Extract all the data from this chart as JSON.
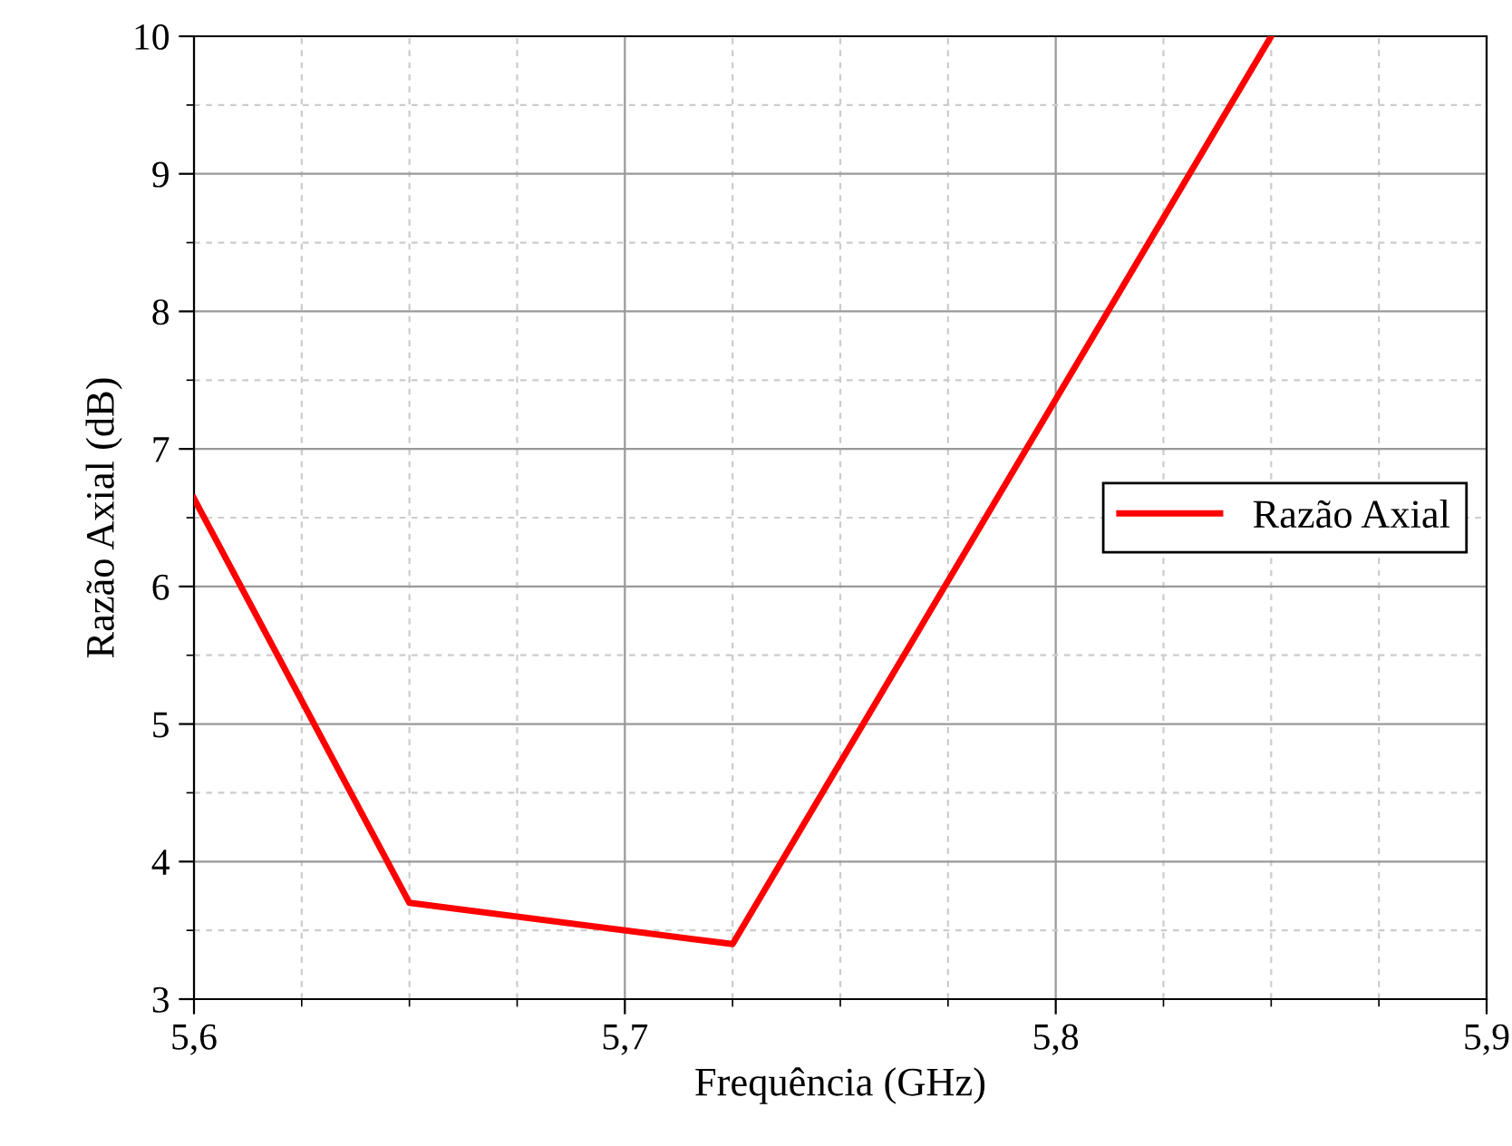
{
  "chart_data": {
    "type": "line",
    "xlabel": "Frequência (GHz)",
    "ylabel": "Razão Axial (dB)",
    "series": [
      {
        "name": "Razão Axial",
        "color": "#ff0000",
        "x": [
          5.6,
          5.65,
          5.725,
          5.85
        ],
        "values": [
          6.64,
          3.7,
          3.4,
          10.0
        ]
      }
    ],
    "xlim": [
      5.6,
      5.9
    ],
    "xticks": [
      {
        "value": 5.6,
        "label": "5,6"
      },
      {
        "value": 5.7,
        "label": "5,7"
      },
      {
        "value": 5.8,
        "label": "5,8"
      },
      {
        "value": 5.9,
        "label": "5,9"
      }
    ],
    "ylim": [
      3,
      10
    ],
    "yticks": [
      3,
      4,
      5,
      6,
      7,
      8,
      9,
      10
    ],
    "grid": true,
    "legend": "center right",
    "marker": "none",
    "line_style": "solid"
  }
}
